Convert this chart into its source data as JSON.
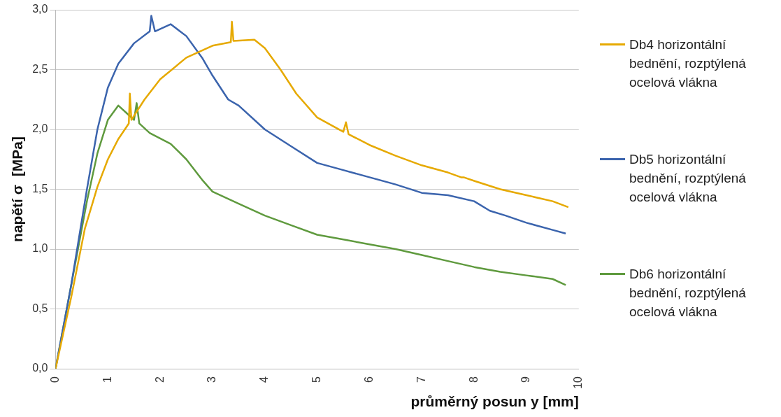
{
  "chart_data": {
    "type": "line",
    "xlabel": "průměrný posun y [mm]",
    "ylabel": "napětí σ  [MPa]",
    "xlim": [
      0,
      10
    ],
    "xticks": [
      0,
      1,
      2,
      3,
      4,
      5,
      6,
      7,
      8,
      9,
      10
    ],
    "ylim": [
      0,
      3
    ],
    "yticks": [
      {
        "value": 0,
        "label": "0,0"
      },
      {
        "value": 0.5,
        "label": "0,5"
      },
      {
        "value": 1,
        "label": "1,0"
      },
      {
        "value": 1.5,
        "label": "1,5"
      },
      {
        "value": 2,
        "label": "2,0"
      },
      {
        "value": 2.5,
        "label": "2,5"
      },
      {
        "value": 3,
        "label": "3,0"
      }
    ],
    "grid": "y",
    "legend": "right",
    "marker": "none",
    "line_style": "solid",
    "series": [
      {
        "name": "Db4 horizontální bednění, rozptýlená ocelová vlákna",
        "color": "#e6a900",
        "x": [
          0,
          0.3,
          0.56,
          0.8,
          1,
          1.2,
          1.4,
          1.42,
          1.45,
          1.7,
          2,
          2.5,
          3,
          3.35,
          3.37,
          3.4,
          3.8,
          4,
          4.3,
          4.6,
          5,
          5.5,
          5.55,
          5.6,
          6,
          6.5,
          7,
          7.5,
          7.75,
          7.8,
          8,
          8.5,
          9,
          9.5,
          9.8
        ],
        "values": [
          0,
          0.6,
          1.17,
          1.52,
          1.75,
          1.92,
          2.05,
          2.3,
          2.08,
          2.25,
          2.42,
          2.6,
          2.7,
          2.73,
          2.9,
          2.74,
          2.75,
          2.68,
          2.5,
          2.3,
          2.1,
          1.98,
          2.06,
          1.96,
          1.87,
          1.78,
          1.7,
          1.64,
          1.6,
          1.6,
          1.57,
          1.5,
          1.45,
          1.4,
          1.35
        ]
      },
      {
        "name": "Db5 horizontální bednění, rozptýlená ocelová vlákna",
        "color": "#3b64ad",
        "x": [
          0,
          0.3,
          0.6,
          0.8,
          1,
          1.2,
          1.5,
          1.8,
          1.83,
          1.9,
          2.2,
          2.5,
          2.8,
          3,
          3.3,
          3.5,
          4,
          4.5,
          5,
          5.5,
          6,
          6.5,
          7,
          7.5,
          8,
          8.3,
          8.6,
          9,
          9.5,
          9.75
        ],
        "values": [
          0,
          0.7,
          1.5,
          2,
          2.35,
          2.55,
          2.72,
          2.82,
          2.95,
          2.82,
          2.88,
          2.78,
          2.6,
          2.45,
          2.25,
          2.2,
          2,
          1.86,
          1.72,
          1.66,
          1.6,
          1.54,
          1.47,
          1.45,
          1.4,
          1.32,
          1.28,
          1.22,
          1.16,
          1.13
        ]
      },
      {
        "name": "Db6 horizontální bednění, rozptýlená ocelová vlákna",
        "color": "#5f9a3e",
        "x": [
          0,
          0.3,
          0.6,
          0.8,
          1,
          1.2,
          1.4,
          1.5,
          1.55,
          1.6,
          1.8,
          2.2,
          2.5,
          2.8,
          3,
          3.5,
          4,
          4.5,
          5,
          5.5,
          6,
          6.5,
          7,
          7.5,
          8,
          8.5,
          9,
          9.5,
          9.75
        ],
        "values": [
          0,
          0.7,
          1.4,
          1.8,
          2.08,
          2.2,
          2.12,
          2.08,
          2.22,
          2.05,
          1.97,
          1.88,
          1.75,
          1.58,
          1.48,
          1.38,
          1.28,
          1.2,
          1.12,
          1.08,
          1.04,
          1,
          0.95,
          0.9,
          0.85,
          0.81,
          0.78,
          0.75,
          0.7
        ]
      }
    ]
  }
}
